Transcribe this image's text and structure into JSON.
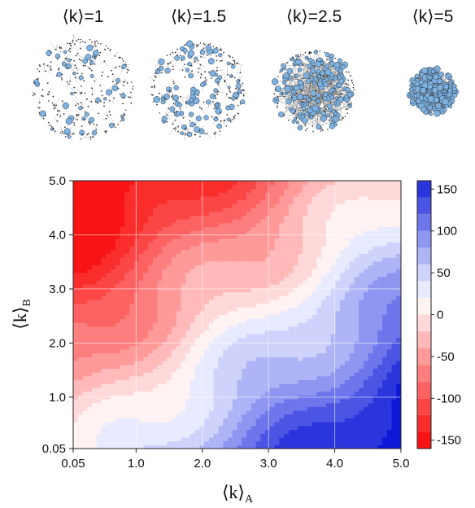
{
  "networks": [
    {
      "label": "⟨k⟩=1",
      "mean_degree": 1
    },
    {
      "label": "⟨k⟩=1.5",
      "mean_degree": 1.5
    },
    {
      "label": "⟨k⟩=2.5",
      "mean_degree": 2.5
    },
    {
      "label": "⟨k⟩=5",
      "mean_degree": 5
    }
  ],
  "chart_data": {
    "type": "heatmap",
    "xlabel": "⟨k⟩",
    "xlabel_sub": "A",
    "ylabel": "⟨k⟩",
    "ylabel_sub": "B",
    "xlim": [
      0.05,
      5.0
    ],
    "ylim": [
      0.05,
      5.0
    ],
    "x_ticks": [
      "0.05",
      "1.0",
      "2.0",
      "3.0",
      "4.0",
      "5.0"
    ],
    "y_ticks": [
      "0.05",
      "1.0",
      "2.0",
      "3.0",
      "4.0",
      "5.0"
    ],
    "grid": true,
    "colorbar": {
      "range": [
        -160,
        160
      ],
      "ticks": [
        "150",
        "100",
        "50",
        "0",
        "-50",
        "-100",
        "-150"
      ],
      "levels": [
        -160,
        -140,
        -120,
        -100,
        -80,
        -60,
        -40,
        -20,
        0,
        20,
        40,
        60,
        80,
        100,
        120,
        140,
        160
      ],
      "colors": [
        "#f81414",
        "#fa2d2d",
        "#fb4646",
        "#fc6262",
        "#fd7e7e",
        "#fe9a9a",
        "#ffb9b9",
        "#ffd9d9",
        "#fff2f2",
        "#e8eaff",
        "#cfd3fb",
        "#aeb4f6",
        "#8e96f1",
        "#6d76ea",
        "#4c55e3",
        "#2b35dc",
        "#0d18d6"
      ]
    },
    "model": "value approx = 40 * (x - y); levels at 20-unit steps",
    "values": {
      "x": [
        0.05,
        1.0,
        2.0,
        3.0,
        4.0,
        5.0
      ],
      "y": [
        0.05,
        1.0,
        2.0,
        3.0,
        4.0,
        5.0
      ],
      "z": [
        [
          0,
          38,
          78,
          118,
          158,
          160
        ],
        [
          -38,
          0,
          40,
          80,
          120,
          160
        ],
        [
          -78,
          -40,
          0,
          40,
          80,
          120
        ],
        [
          -118,
          -80,
          -40,
          0,
          40,
          80
        ],
        [
          -158,
          -120,
          -80,
          -40,
          0,
          40
        ],
        [
          -160,
          -160,
          -120,
          -80,
          -40,
          0
        ]
      ]
    }
  }
}
